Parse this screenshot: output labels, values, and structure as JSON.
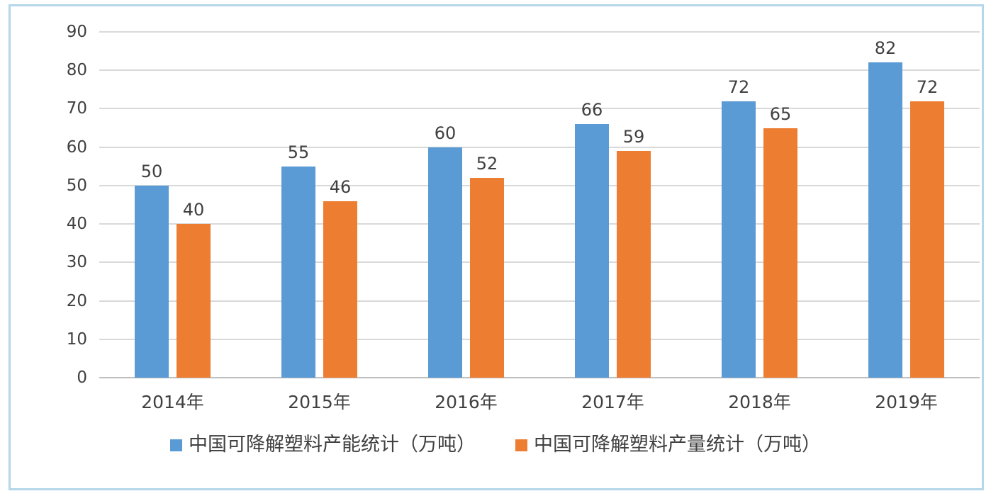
{
  "chart_data": {
    "type": "bar",
    "title": "",
    "xlabel": "",
    "ylabel": "",
    "categories": [
      "2014年",
      "2015年",
      "2016年",
      "2017年",
      "2018年",
      "2019年"
    ],
    "series": [
      {
        "name": "中国可降解塑料产能统计（万吨）",
        "key": "capacity",
        "color": "#5b9bd5",
        "values": [
          50,
          55,
          60,
          66,
          72,
          82
        ]
      },
      {
        "name": "中国可降解塑料产量统计（万吨）",
        "key": "output",
        "color": "#ed7d31",
        "values": [
          40,
          46,
          52,
          59,
          65,
          72
        ]
      }
    ],
    "ylim": [
      0,
      90
    ],
    "ytick_step": 10,
    "yticks": [
      0,
      10,
      20,
      30,
      40,
      50,
      60,
      70,
      80,
      90
    ],
    "grid": true,
    "data_labels": true,
    "legend_position": "bottom"
  },
  "colors": {
    "frame_border": "#b4d7ea",
    "gridline": "#d9d9d9",
    "axis_text": "#404040",
    "background": "#ffffff"
  }
}
